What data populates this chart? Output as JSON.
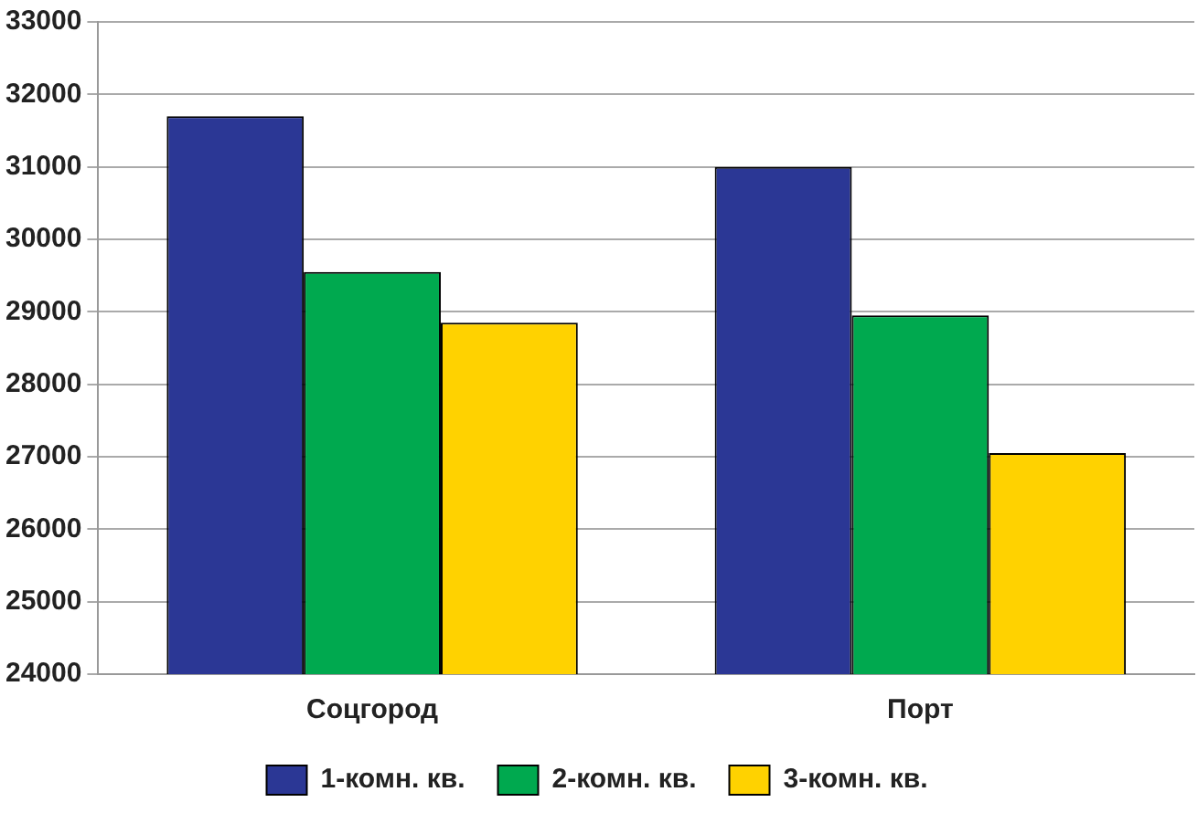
{
  "chart_data": {
    "type": "bar",
    "categories": [
      "Соцгород",
      "Порт"
    ],
    "series": [
      {
        "name": "1-комн. кв.",
        "color": "#2b3795",
        "values": [
          31700,
          31000
        ]
      },
      {
        "name": "2-комн. кв.",
        "color": "#00a94f",
        "values": [
          29550,
          28950
        ]
      },
      {
        "name": "3-комн. кв.",
        "color": "#ffd200",
        "values": [
          28850,
          27050
        ]
      }
    ],
    "ylim": [
      24000,
      33000
    ],
    "yticks": [
      24000,
      25000,
      26000,
      27000,
      28000,
      29000,
      30000,
      31000,
      32000,
      33000
    ],
    "grid": "y",
    "legend": "bottom"
  }
}
